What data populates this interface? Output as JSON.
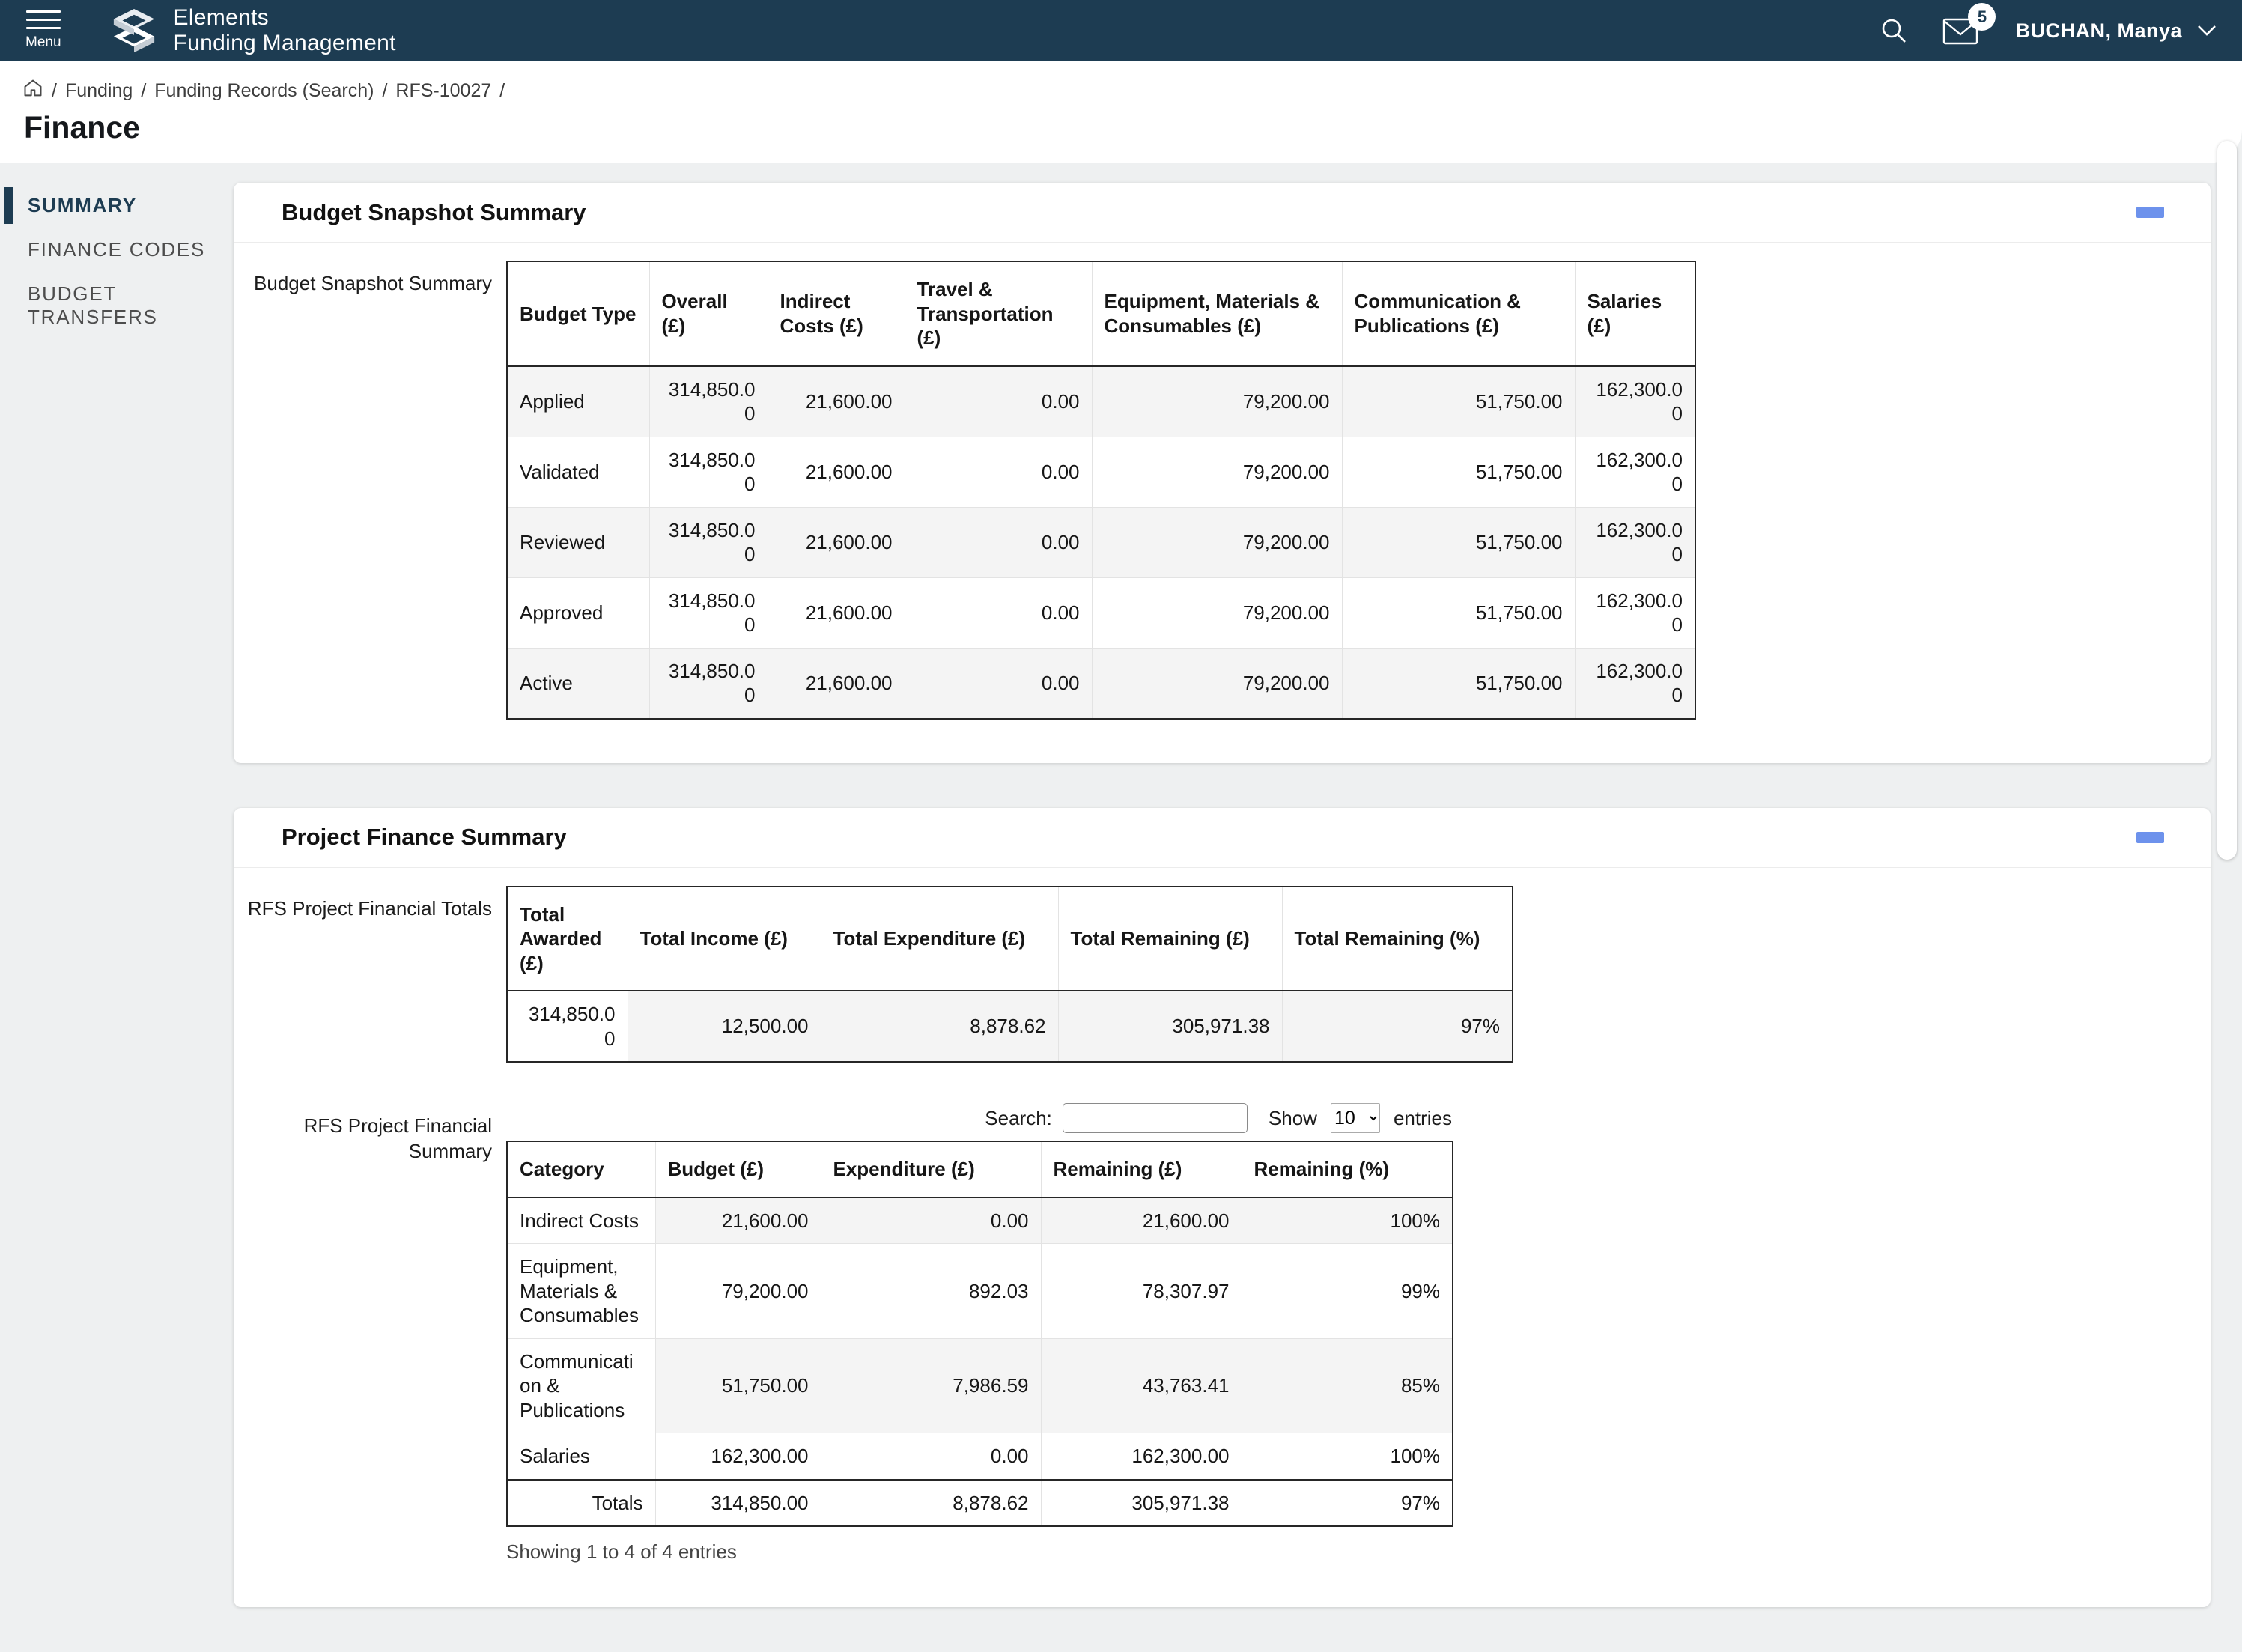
{
  "header": {
    "menu_label": "Menu",
    "app_title_line1": "Elements",
    "app_title_line2": "Funding Management",
    "notification_count": "5",
    "user_name": "BUCHAN, Manya"
  },
  "breadcrumb": {
    "items": [
      "Funding",
      "Funding Records (Search)",
      "RFS-10027"
    ],
    "separator": "/",
    "page_title": "Finance"
  },
  "sidebar": {
    "items": [
      {
        "label": "SUMMARY",
        "active": true
      },
      {
        "label": "FINANCE CODES",
        "active": false
      },
      {
        "label": "BUDGET TRANSFERS",
        "active": false
      }
    ]
  },
  "budget_snapshot": {
    "card_title": "Budget Snapshot Summary",
    "field_label": "Budget Snapshot Summary",
    "table": {
      "headers": [
        "Budget Type",
        "Overall (£)",
        "Indirect Costs (£)",
        "Travel & Transportation (£)",
        "Equipment, Materials & Consumables (£)",
        "Communication & Publications (£)",
        "Salaries (£)"
      ],
      "rows": [
        [
          "Applied",
          "314,850.00",
          "21,600.00",
          "0.00",
          "79,200.00",
          "51,750.00",
          "162,300.00"
        ],
        [
          "Validated",
          "314,850.00",
          "21,600.00",
          "0.00",
          "79,200.00",
          "51,750.00",
          "162,300.00"
        ],
        [
          "Reviewed",
          "314,850.00",
          "21,600.00",
          "0.00",
          "79,200.00",
          "51,750.00",
          "162,300.00"
        ],
        [
          "Approved",
          "314,850.00",
          "21,600.00",
          "0.00",
          "79,200.00",
          "51,750.00",
          "162,300.00"
        ],
        [
          "Active",
          "314,850.00",
          "21,600.00",
          "0.00",
          "79,200.00",
          "51,750.00",
          "162,300.00"
        ]
      ]
    }
  },
  "project_finance": {
    "card_title": "Project Finance Summary",
    "totals_field_label": "RFS Project Financial Totals",
    "totals_table": {
      "headers": [
        "Total Awarded (£)",
        "Total Income (£)",
        "Total Expenditure (£)",
        "Total Remaining (£)",
        "Total Remaining (%)"
      ],
      "row": [
        "314,850.00",
        "12,500.00",
        "8,878.62",
        "305,971.38",
        "97%"
      ]
    },
    "summary_field_label": "RFS Project Financial Summary",
    "controls": {
      "search_label": "Search:",
      "search_value": "",
      "show_label": "Show",
      "page_size": "10",
      "entries_label": "entries"
    },
    "summary_table": {
      "headers": [
        "Category",
        "Budget (£)",
        "Expenditure (£)",
        "Remaining (£)",
        "Remaining (%)"
      ],
      "rows": [
        [
          "Indirect Costs",
          "21,600.00",
          "0.00",
          "21,600.00",
          "100%"
        ],
        [
          "Equipment, Materials & Consumables",
          "79,200.00",
          "892.03",
          "78,307.97",
          "99%"
        ],
        [
          "Communication & Publications",
          "51,750.00",
          "7,986.59",
          "43,763.41",
          "85%"
        ],
        [
          "Salaries",
          "162,300.00",
          "0.00",
          "162,300.00",
          "100%"
        ]
      ],
      "totals_row": [
        "Totals",
        "314,850.00",
        "8,878.62",
        "305,971.38",
        "97%"
      ]
    },
    "showing_text": "Showing 1 to 4 of 4 entries"
  },
  "icons": {
    "hamburger": "menu-icon",
    "logo": "elements-logo",
    "search": "search-icon",
    "mail": "mail-icon",
    "chevron_down": "chevron-down-icon",
    "home": "home-icon",
    "collapse": "collapse-minus-icon"
  },
  "colors": {
    "header_bg": "#1d3c52",
    "accent_blue": "#6d92ec",
    "row_stripe": "#f4f4f4",
    "page_bg": "#eef0f1"
  }
}
